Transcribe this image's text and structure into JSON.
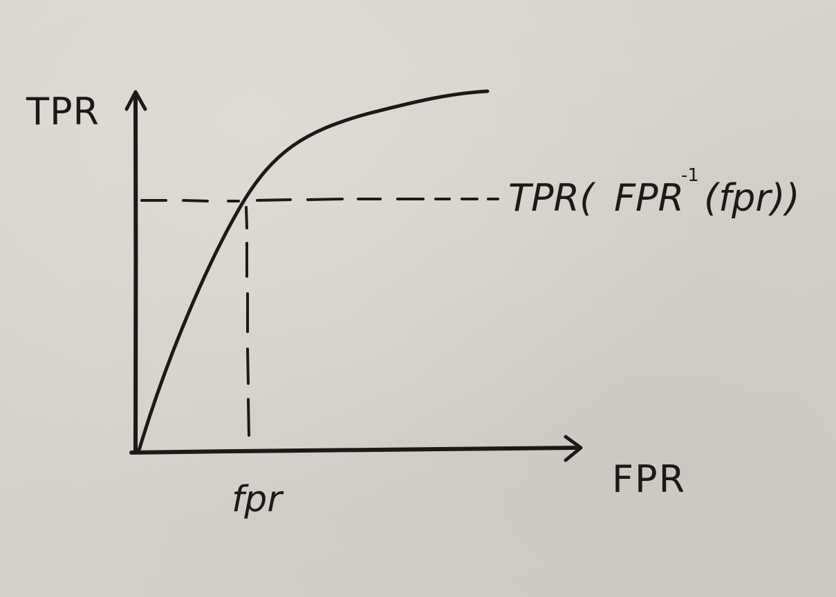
{
  "diagram": {
    "y_axis_label": "TPR",
    "x_axis_label": "FPR",
    "x_marker_label": "fpr",
    "y_marker_label": {
      "prefix": "TPR(",
      "inner": "FPR",
      "superscript": "-1",
      "suffix": "(fpr))"
    }
  },
  "colors": {
    "ink": "#1b1a19",
    "paper": "#d6d3cc"
  }
}
